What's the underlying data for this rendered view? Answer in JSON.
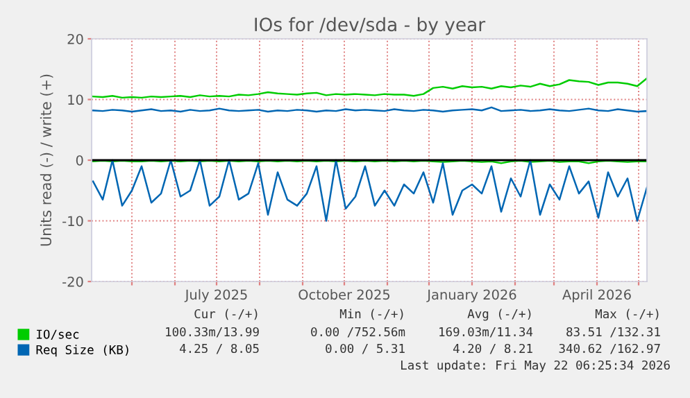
{
  "chart_data": {
    "type": "line",
    "title": "IOs for /dev/sda - by year",
    "ylabel": "Units read (-) / write (+)",
    "x": [
      "2025-04-03",
      "2025-04-10",
      "2025-04-17",
      "2025-04-24",
      "2025-05-01",
      "2025-05-08",
      "2025-05-15",
      "2025-05-22",
      "2025-05-29",
      "2025-06-05",
      "2025-06-12",
      "2025-06-19",
      "2025-06-26",
      "2025-07-03",
      "2025-07-10",
      "2025-07-17",
      "2025-07-24",
      "2025-07-31",
      "2025-08-07",
      "2025-08-14",
      "2025-08-21",
      "2025-08-28",
      "2025-09-04",
      "2025-09-11",
      "2025-09-18",
      "2025-09-25",
      "2025-10-02",
      "2025-10-09",
      "2025-10-16",
      "2025-10-23",
      "2025-10-30",
      "2025-11-06",
      "2025-11-13",
      "2025-11-20",
      "2025-11-27",
      "2025-12-04",
      "2025-12-11",
      "2025-12-18",
      "2025-12-25",
      "2026-01-01",
      "2026-01-08",
      "2026-01-15",
      "2026-01-22",
      "2026-01-29",
      "2026-02-05",
      "2026-02-12",
      "2026-02-19",
      "2026-02-26",
      "2026-03-05",
      "2026-03-12",
      "2026-03-19",
      "2026-03-26",
      "2026-04-02",
      "2026-04-09",
      "2026-04-16",
      "2026-04-23",
      "2026-04-30",
      "2026-05-07"
    ],
    "series": [
      {
        "name": "IO/sec",
        "color": "#00cc00",
        "values": [
          10.5,
          10.4,
          10.6,
          10.3,
          10.4,
          10.3,
          10.5,
          10.4,
          10.5,
          10.6,
          10.4,
          10.7,
          10.5,
          10.6,
          10.5,
          10.8,
          10.7,
          10.9,
          11.2,
          11.0,
          10.9,
          10.8,
          11.0,
          11.1,
          10.7,
          10.9,
          10.8,
          10.9,
          10.8,
          10.7,
          10.9,
          10.8,
          10.8,
          10.6,
          10.9,
          11.9,
          12.1,
          11.8,
          12.2,
          12.0,
          12.1,
          11.8,
          12.2,
          12.0,
          12.3,
          12.1,
          12.6,
          12.2,
          12.5,
          13.2,
          13.0,
          12.9,
          12.4,
          12.8,
          12.8,
          12.6,
          12.2,
          13.5
        ]
      },
      {
        "color": "#00cc00",
        "values": [
          -0.2,
          -0.1,
          -0.2,
          -0.1,
          -0.2,
          -0.2,
          -0.1,
          -0.2,
          -0.1,
          -0.2,
          -0.1,
          -0.2,
          -0.1,
          -0.2,
          -0.1,
          -0.2,
          -0.1,
          -0.2,
          -0.1,
          -0.2,
          -0.1,
          -0.2,
          -0.1,
          -0.2,
          -0.1,
          -0.2,
          -0.1,
          -0.2,
          -0.1,
          -0.2,
          -0.1,
          -0.2,
          -0.1,
          -0.2,
          -0.1,
          -0.2,
          -0.3,
          -0.2,
          -0.1,
          -0.2,
          -0.3,
          -0.2,
          -0.5,
          -0.2,
          -0.1,
          -0.3,
          -0.2,
          -0.1,
          -0.3,
          -0.2,
          -0.2,
          -0.5,
          -0.2,
          -0.1,
          -0.2,
          -0.3,
          -0.2,
          -0.2
        ]
      },
      {
        "name": "Req Size (KB)",
        "color": "#0066b3",
        "values": [
          8.2,
          8.1,
          8.3,
          8.2,
          8.0,
          8.2,
          8.4,
          8.1,
          8.2,
          8.0,
          8.3,
          8.1,
          8.2,
          8.5,
          8.2,
          8.1,
          8.2,
          8.3,
          8.0,
          8.2,
          8.1,
          8.3,
          8.2,
          8.0,
          8.2,
          8.1,
          8.4,
          8.2,
          8.3,
          8.2,
          8.1,
          8.4,
          8.2,
          8.1,
          8.3,
          8.2,
          8.0,
          8.2,
          8.3,
          8.4,
          8.2,
          8.7,
          8.1,
          8.2,
          8.3,
          8.1,
          8.2,
          8.4,
          8.2,
          8.1,
          8.3,
          8.5,
          8.2,
          8.1,
          8.4,
          8.2,
          8.0,
          8.1
        ]
      },
      {
        "color": "#0066b3",
        "values": [
          -3.5,
          -6.5,
          0,
          -7.5,
          -5.0,
          -1.0,
          -7.0,
          -5.5,
          0,
          -6.0,
          -5.0,
          0,
          -7.5,
          -6.0,
          0,
          -6.5,
          -5.5,
          -0.5,
          -9.0,
          -2.0,
          -6.5,
          -7.5,
          -5.5,
          -1.0,
          -10.0,
          0,
          -8.0,
          -6.0,
          -1.0,
          -7.5,
          -5.0,
          -7.5,
          -4.0,
          -5.5,
          -2.0,
          -7.0,
          -0.5,
          -9.0,
          -5.0,
          -4.0,
          -5.5,
          -1.0,
          -8.5,
          -3.0,
          -6.0,
          0,
          -9.0,
          -4.0,
          -6.5,
          -1.0,
          -5.5,
          -3.5,
          -9.5,
          -2.0,
          -6.0,
          -3.0,
          -10.0,
          -4.5
        ]
      }
    ],
    "xlim": [
      "2025-04-02",
      "2026-05-07"
    ],
    "xticks": [
      {
        "value": "2025-05-01",
        "label": null
      },
      {
        "value": "2025-06-01",
        "label": null
      },
      {
        "value": "2025-07-01",
        "label": "July 2025"
      },
      {
        "value": "2025-08-01",
        "label": null
      },
      {
        "value": "2025-09-01",
        "label": null
      },
      {
        "value": "2025-10-01",
        "label": "October 2025"
      },
      {
        "value": "2025-11-01",
        "label": null
      },
      {
        "value": "2025-12-01",
        "label": null
      },
      {
        "value": "2026-01-01",
        "label": "January 2026"
      },
      {
        "value": "2026-02-01",
        "label": null
      },
      {
        "value": "2026-03-01",
        "label": null
      },
      {
        "value": "2026-04-01",
        "label": "April 2026"
      },
      {
        "value": "2026-05-01",
        "label": null
      }
    ],
    "ylim": [
      -20,
      20
    ],
    "yticks": [
      -20,
      -10,
      0,
      10,
      20
    ],
    "ref_lines": [
      {
        "axis": "y",
        "value": 0,
        "color": "#000000"
      }
    ],
    "grid": true,
    "legend": "bottom left",
    "line_style": "solid",
    "annotations": [
      "Cur (-/+)",
      "Min (-/+)",
      "Avg (-/+)",
      "Max (-/+)",
      "100.33m/13.99",
      "0.00 /752.56m",
      "169.03m/11.34",
      "83.51 /132.31",
      "4.25 / 8.05",
      "0.00 / 5.31",
      "4.20 / 8.21",
      "340.62 /162.97",
      "Last update: Fri May 22 06:25:34 2026"
    ]
  }
}
